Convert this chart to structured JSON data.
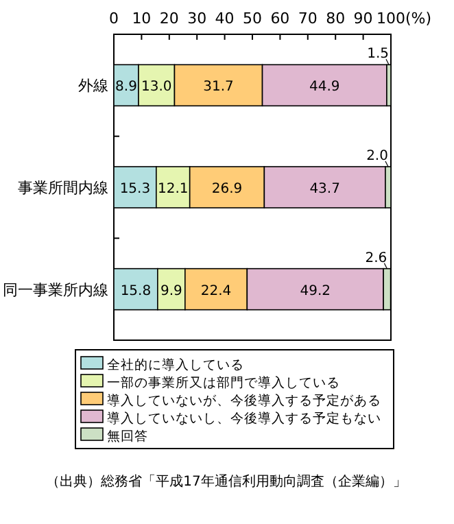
{
  "chart_data": {
    "type": "bar",
    "orientation": "horizontal",
    "stacked": true,
    "legend": "bottom",
    "categories": [
      "外線",
      "事業所間内線",
      "同一事業所内線"
    ],
    "series": [
      {
        "name": "全社的に導入している",
        "color": "#b3e0e0",
        "values": [
          8.9,
          15.3,
          15.8
        ],
        "value_labels": [
          "8.9",
          "15.3",
          "15.8"
        ]
      },
      {
        "name": "一部の事業所又は部門で導入している",
        "color": "#e5f5b0",
        "values": [
          13.0,
          12.1,
          9.9
        ],
        "value_labels": [
          "13.0",
          "12.1",
          "9.9"
        ]
      },
      {
        "name": "導入していないが、今後導入する予定がある",
        "color": "#ffcc77",
        "values": [
          31.7,
          26.9,
          22.4
        ],
        "value_labels": [
          "31.7",
          "26.9",
          "22.4"
        ]
      },
      {
        "name": "導入していないし、今後導入する予定もない",
        "color": "#e0b8d0",
        "values": [
          44.9,
          43.7,
          49.2
        ],
        "value_labels": [
          "44.9",
          "43.7",
          "49.2"
        ]
      },
      {
        "name": "無回答",
        "color": "#cce0c4",
        "values": [
          1.5,
          2.0,
          2.6
        ],
        "value_labels": [
          "1.5",
          "2.0",
          "2.6"
        ]
      }
    ],
    "xlim": [
      0,
      100
    ],
    "xticks": [
      0,
      10,
      20,
      30,
      40,
      50,
      60,
      70,
      80,
      90,
      {
        "value": 100,
        "label": "100(%)"
      }
    ],
    "annotations": [
      "（出典）総務省「平成17年通信利用動向調査（企業編）」"
    ]
  }
}
